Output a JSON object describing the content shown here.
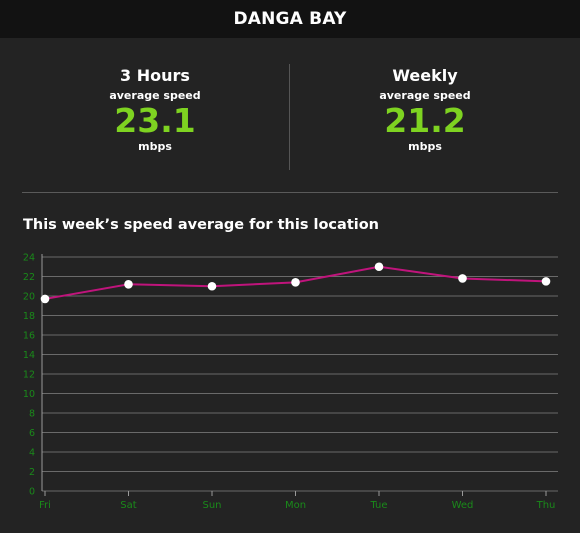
{
  "header": {
    "title": "DANGA BAY"
  },
  "stats": [
    {
      "period": "3 Hours",
      "label": "average speed",
      "value": "23.1",
      "unit": "mbps"
    },
    {
      "period": "Weekly",
      "label": "average speed",
      "value": "21.2",
      "unit": "mbps"
    }
  ],
  "colors": {
    "accent": "#7ed321",
    "line": "#c0147c",
    "tick_text": "#1a8a1a",
    "background": "#232323",
    "header_bg": "#121212"
  },
  "chart_data": {
    "type": "line",
    "title": "This week’s speed average for this location",
    "categories": [
      "Fri",
      "Sat",
      "Sun",
      "Mon",
      "Tue",
      "Wed",
      "Thu"
    ],
    "values": [
      19.7,
      21.2,
      21.0,
      21.4,
      23.0,
      21.8,
      21.5
    ],
    "yticks": [
      "0",
      "2",
      "4",
      "6",
      "8",
      "10",
      "12",
      "14",
      "16",
      "18",
      "20",
      "22",
      "24"
    ],
    "ylim": [
      0,
      24
    ],
    "grid": true,
    "legend": "none"
  }
}
